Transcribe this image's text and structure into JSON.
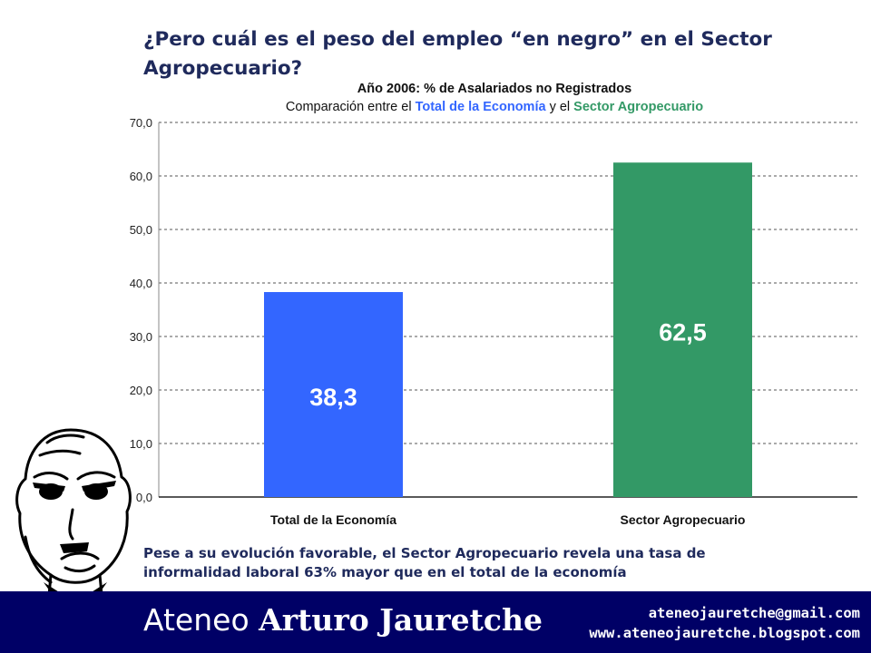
{
  "slide": {
    "title": "¿Pero cuál es el peso del empleo “en negro” en el Sector Agropecuario?",
    "caption": "Pese a su evolución favorable, el Sector Agropecuario revela una tasa de informalidad laboral 63% mayor que en el total de la economía"
  },
  "chart_data": {
    "type": "bar",
    "title": "Año 2006: % de Asalariados no Registrados",
    "subtitle": {
      "prefix": "Comparación entre el ",
      "blue": "Total de la Economía",
      "middle": " y el ",
      "green": "Sector Agropecuario"
    },
    "categories": [
      "Total de la Economía",
      "Sector Agropecuario"
    ],
    "values": [
      38.3,
      62.5
    ],
    "data_labels": [
      "38,3",
      "62,5"
    ],
    "colors": [
      "#3366ff",
      "#339966"
    ],
    "ylim": [
      0,
      70
    ],
    "yticks": [
      "0,0",
      "10,0",
      "20,0",
      "30,0",
      "40,0",
      "50,0",
      "60,0",
      "70,0"
    ],
    "grid": true,
    "xlabel": "",
    "ylabel": ""
  },
  "footer": {
    "brand_light": "Ateneo ",
    "brand_bold": "Arturo Jauretche",
    "email": "ateneojauretche@gmail.com",
    "website": "www.ateneojauretche.blogspot.com",
    "background": "#000066"
  }
}
